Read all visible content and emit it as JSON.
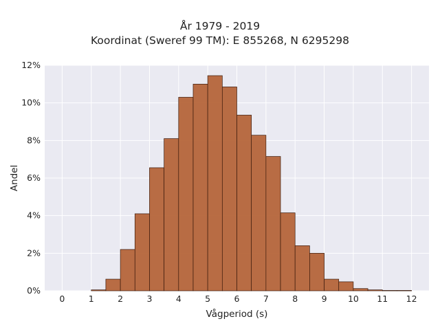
{
  "chart_data": {
    "type": "bar",
    "title": "År 1979 - 2019",
    "subtitle": "Koordinat (Sweref 99 TM): E 855268, N 6295298",
    "xlabel": "Vågperiod (s)",
    "ylabel": "Andel",
    "xlim": [
      -0.6,
      12.6
    ],
    "ylim": [
      0,
      12
    ],
    "x_ticks": [
      0,
      1,
      2,
      3,
      4,
      5,
      6,
      7,
      8,
      9,
      10,
      11,
      12
    ],
    "y_ticks": [
      0,
      2,
      4,
      6,
      8,
      10,
      12
    ],
    "y_tick_labels": [
      "0%",
      "2%",
      "4%",
      "6%",
      "8%",
      "10%",
      "12%"
    ],
    "bin_width": 0.5,
    "bins": [
      {
        "x0": 1.0,
        "x1": 1.5,
        "value": 0.05
      },
      {
        "x0": 1.5,
        "x1": 2.0,
        "value": 0.62
      },
      {
        "x0": 2.0,
        "x1": 2.5,
        "value": 2.2
      },
      {
        "x0": 2.5,
        "x1": 3.0,
        "value": 4.1
      },
      {
        "x0": 3.0,
        "x1": 3.5,
        "value": 6.55
      },
      {
        "x0": 3.5,
        "x1": 4.0,
        "value": 8.1
      },
      {
        "x0": 4.0,
        "x1": 4.5,
        "value": 10.3
      },
      {
        "x0": 4.5,
        "x1": 5.0,
        "value": 11.0
      },
      {
        "x0": 5.0,
        "x1": 5.5,
        "value": 11.45
      },
      {
        "x0": 5.5,
        "x1": 6.0,
        "value": 10.85
      },
      {
        "x0": 6.0,
        "x1": 6.5,
        "value": 9.35
      },
      {
        "x0": 6.5,
        "x1": 7.0,
        "value": 8.28
      },
      {
        "x0": 7.0,
        "x1": 7.5,
        "value": 7.15
      },
      {
        "x0": 7.5,
        "x1": 8.0,
        "value": 4.15
      },
      {
        "x0": 8.0,
        "x1": 8.5,
        "value": 2.4
      },
      {
        "x0": 8.5,
        "x1": 9.0,
        "value": 2.0
      },
      {
        "x0": 9.0,
        "x1": 9.5,
        "value": 0.62
      },
      {
        "x0": 9.5,
        "x1": 10.0,
        "value": 0.48
      },
      {
        "x0": 10.0,
        "x1": 10.5,
        "value": 0.12
      },
      {
        "x0": 10.5,
        "x1": 11.0,
        "value": 0.05
      },
      {
        "x0": 11.0,
        "x1": 11.5,
        "value": 0.02
      },
      {
        "x0": 11.5,
        "x1": 12.0,
        "value": 0.02
      }
    ],
    "grid": true,
    "colors": {
      "bar": "#b5653a",
      "bar_edge": "#3a1a0c",
      "plot_bg": "#eaeaf2",
      "grid": "#ffffff"
    }
  }
}
